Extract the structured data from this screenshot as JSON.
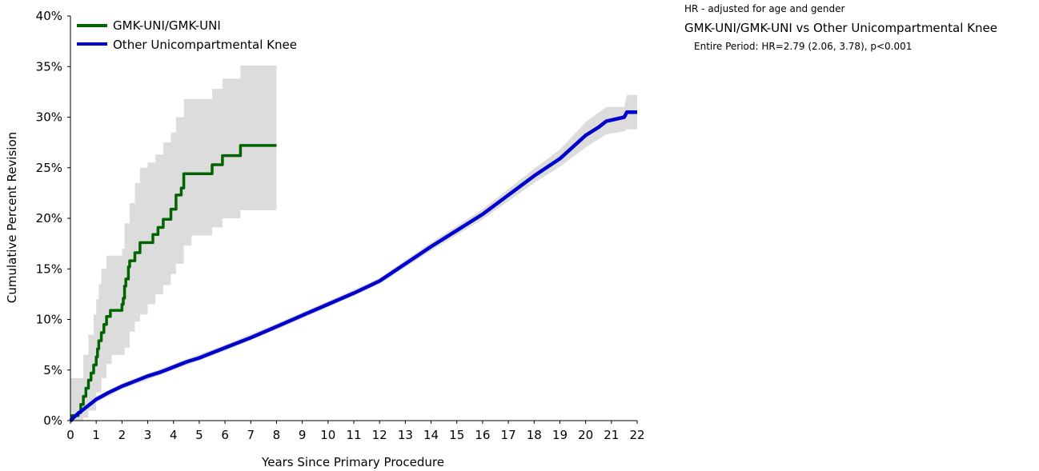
{
  "annotations": {
    "hr_note": "HR - adjusted for age and gender",
    "comparison": "GMK-UNI/GMK-UNI vs Other Unicompartmental Knee",
    "period": "Entire Period: HR=2.79 (2.06, 3.78), p<0.001"
  },
  "chart_data": {
    "type": "line",
    "title": "",
    "xlabel": "Years Since Primary Procedure",
    "ylabel": "Cumulative Percent Revision",
    "xlim": [
      0,
      22
    ],
    "ylim": [
      0,
      40
    ],
    "x_ticks": [
      "0",
      "1",
      "2",
      "3",
      "4",
      "5",
      "6",
      "7",
      "8",
      "9",
      "10",
      "11",
      "12",
      "13",
      "14",
      "15",
      "16",
      "17",
      "18",
      "19",
      "20",
      "21",
      "22"
    ],
    "y_ticks": [
      "0%",
      "5%",
      "10%",
      "15%",
      "20%",
      "25%",
      "30%",
      "35%",
      "40%"
    ],
    "grid": false,
    "legend_position": "top-left",
    "series": [
      {
        "name": "GMK-UNI/GMK-UNI",
        "color": "#006400",
        "step": true,
        "points": [
          [
            0,
            0
          ],
          [
            0.05,
            0.5
          ],
          [
            0.3,
            0.8
          ],
          [
            0.4,
            1.6
          ],
          [
            0.5,
            2.4
          ],
          [
            0.6,
            3.2
          ],
          [
            0.7,
            4.0
          ],
          [
            0.8,
            4.7
          ],
          [
            0.9,
            5.5
          ],
          [
            1.0,
            6.3
          ],
          [
            1.05,
            7.1
          ],
          [
            1.1,
            7.9
          ],
          [
            1.2,
            8.7
          ],
          [
            1.3,
            9.5
          ],
          [
            1.4,
            10.3
          ],
          [
            1.5,
            10.3
          ],
          [
            1.55,
            10.9
          ],
          [
            1.6,
            10.9
          ],
          [
            2.0,
            11.5
          ],
          [
            2.05,
            12.1
          ],
          [
            2.1,
            13.3
          ],
          [
            2.15,
            14.0
          ],
          [
            2.25,
            15.2
          ],
          [
            2.3,
            15.8
          ],
          [
            2.5,
            16.6
          ],
          [
            2.7,
            17.6
          ],
          [
            3.0,
            17.6
          ],
          [
            3.2,
            18.4
          ],
          [
            3.4,
            19.1
          ],
          [
            3.6,
            19.9
          ],
          [
            3.9,
            20.9
          ],
          [
            4.1,
            22.3
          ],
          [
            4.3,
            23.0
          ],
          [
            4.4,
            24.4
          ],
          [
            5.1,
            24.4
          ],
          [
            5.5,
            25.3
          ],
          [
            5.9,
            26.2
          ],
          [
            6.6,
            27.2
          ],
          [
            8.0,
            27.2
          ]
        ],
        "ci_upper": [
          [
            0,
            4.2
          ],
          [
            0.3,
            4.2
          ],
          [
            0.5,
            6.5
          ],
          [
            0.7,
            8.5
          ],
          [
            0.9,
            10.5
          ],
          [
            1.0,
            12.0
          ],
          [
            1.1,
            13.5
          ],
          [
            1.2,
            15.0
          ],
          [
            1.4,
            16.3
          ],
          [
            1.6,
            16.3
          ],
          [
            2.0,
            17.0
          ],
          [
            2.1,
            19.5
          ],
          [
            2.3,
            21.5
          ],
          [
            2.5,
            23.5
          ],
          [
            2.7,
            25.0
          ],
          [
            3.0,
            25.5
          ],
          [
            3.3,
            26.3
          ],
          [
            3.6,
            27.5
          ],
          [
            3.9,
            28.5
          ],
          [
            4.1,
            30.0
          ],
          [
            4.4,
            31.8
          ],
          [
            5.5,
            32.8
          ],
          [
            5.9,
            33.8
          ],
          [
            6.6,
            35.1
          ],
          [
            8.0,
            35.1
          ]
        ],
        "ci_lower": [
          [
            0,
            0
          ],
          [
            0.5,
            0.3
          ],
          [
            0.7,
            1.0
          ],
          [
            1.0,
            2.8
          ],
          [
            1.2,
            4.2
          ],
          [
            1.4,
            5.6
          ],
          [
            1.6,
            6.5
          ],
          [
            2.1,
            7.2
          ],
          [
            2.3,
            8.8
          ],
          [
            2.5,
            9.8
          ],
          [
            2.7,
            10.5
          ],
          [
            3.0,
            11.5
          ],
          [
            3.3,
            12.5
          ],
          [
            3.6,
            13.4
          ],
          [
            3.9,
            14.5
          ],
          [
            4.1,
            15.5
          ],
          [
            4.4,
            17.3
          ],
          [
            4.7,
            18.3
          ],
          [
            5.5,
            19.1
          ],
          [
            5.9,
            20.0
          ],
          [
            6.6,
            20.8
          ],
          [
            8.0,
            20.8
          ]
        ]
      },
      {
        "name": "Other Unicompartmental Knee",
        "color": "#0000cd",
        "step": false,
        "points": [
          [
            0,
            0
          ],
          [
            0.25,
            0.6
          ],
          [
            0.5,
            1.1
          ],
          [
            0.75,
            1.6
          ],
          [
            1.0,
            2.1
          ],
          [
            1.5,
            2.8
          ],
          [
            2.0,
            3.4
          ],
          [
            2.5,
            3.9
          ],
          [
            3.0,
            4.4
          ],
          [
            3.5,
            4.8
          ],
          [
            4.0,
            5.3
          ],
          [
            4.5,
            5.8
          ],
          [
            5.0,
            6.2
          ],
          [
            6.0,
            7.2
          ],
          [
            7.0,
            8.2
          ],
          [
            8.0,
            9.3
          ],
          [
            9.0,
            10.4
          ],
          [
            10.0,
            11.5
          ],
          [
            11.0,
            12.6
          ],
          [
            12.0,
            13.8
          ],
          [
            13.0,
            15.5
          ],
          [
            14.0,
            17.2
          ],
          [
            15.0,
            18.8
          ],
          [
            16.0,
            20.4
          ],
          [
            17.0,
            22.3
          ],
          [
            18.0,
            24.2
          ],
          [
            19.0,
            25.9
          ],
          [
            20.0,
            28.2
          ],
          [
            20.5,
            29.0
          ],
          [
            20.8,
            29.6
          ],
          [
            21.5,
            30.0
          ],
          [
            21.6,
            30.5
          ],
          [
            22.0,
            30.5
          ]
        ],
        "ci_upper": [
          [
            0,
            0.2
          ],
          [
            1.0,
            2.4
          ],
          [
            2.0,
            3.7
          ],
          [
            4.0,
            5.6
          ],
          [
            6.0,
            7.5
          ],
          [
            8.0,
            9.6
          ],
          [
            10.0,
            11.8
          ],
          [
            12.0,
            14.1
          ],
          [
            14.0,
            17.6
          ],
          [
            16.0,
            20.9
          ],
          [
            18.0,
            24.9
          ],
          [
            19.0,
            26.8
          ],
          [
            20.0,
            29.5
          ],
          [
            20.8,
            31.0
          ],
          [
            21.5,
            31.0
          ],
          [
            21.6,
            32.2
          ],
          [
            22.0,
            32.2
          ]
        ],
        "ci_lower": [
          [
            0,
            0
          ],
          [
            1.0,
            1.8
          ],
          [
            2.0,
            3.1
          ],
          [
            4.0,
            5.0
          ],
          [
            6.0,
            6.9
          ],
          [
            8.0,
            9.0
          ],
          [
            10.0,
            11.2
          ],
          [
            12.0,
            13.5
          ],
          [
            14.0,
            16.8
          ],
          [
            16.0,
            19.9
          ],
          [
            18.0,
            23.5
          ],
          [
            19.0,
            25.1
          ],
          [
            20.0,
            27.0
          ],
          [
            20.8,
            28.3
          ],
          [
            21.5,
            28.6
          ],
          [
            21.6,
            28.8
          ],
          [
            22.0,
            28.8
          ]
        ]
      }
    ]
  }
}
